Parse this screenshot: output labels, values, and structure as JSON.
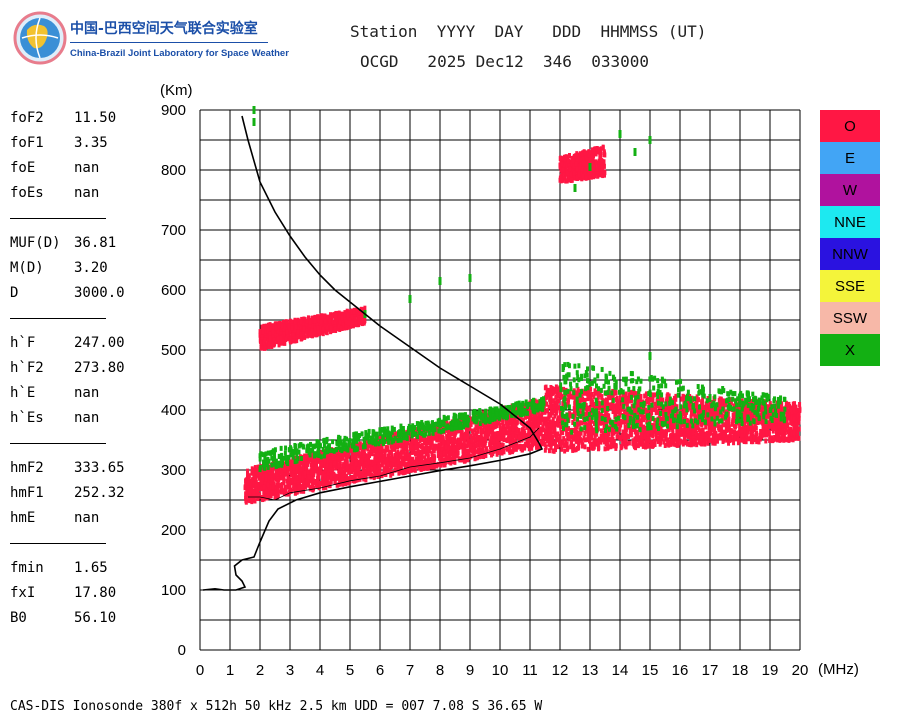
{
  "logo": {
    "cn": "中国-巴西空间天气联合实验室",
    "en": "China-Brazil Joint Laboratory for Space Weather"
  },
  "header": {
    "line1": "Station  YYYY  DAY   DDD  HHMMSS (UT)",
    "line2": "OCGD   2025 Dec12  346  033000"
  },
  "params": [
    [
      [
        "foF2",
        "11.50"
      ],
      [
        "foF1",
        "3.35"
      ],
      [
        "foE",
        "nan"
      ],
      [
        "foEs",
        "nan"
      ]
    ],
    [
      [
        "MUF(D)",
        "36.81"
      ],
      [
        "M(D)",
        "3.20"
      ],
      [
        "D",
        "3000.0"
      ]
    ],
    [
      [
        "h`F",
        "247.00"
      ],
      [
        "h`F2",
        "273.80"
      ],
      [
        "h`E",
        "nan"
      ],
      [
        "h`Es",
        "nan"
      ]
    ],
    [
      [
        "hmF2",
        "333.65"
      ],
      [
        "hmF1",
        "252.32"
      ],
      [
        "hmE",
        "nan"
      ]
    ],
    [
      [
        "fmin",
        "1.65"
      ],
      [
        "fxI",
        "17.80"
      ],
      [
        "B0",
        "56.10"
      ]
    ]
  ],
  "legend": [
    {
      "label": "O",
      "color": "#ff1744"
    },
    {
      "label": "E",
      "color": "#42a5f5"
    },
    {
      "label": "W",
      "color": "#b0129e"
    },
    {
      "label": "NNE",
      "color": "#1de9f0"
    },
    {
      "label": "NNW",
      "color": "#2a12e0"
    },
    {
      "label": "SSE",
      "color": "#f4f43a"
    },
    {
      "label": "SSW",
      "color": "#f7b8a8"
    },
    {
      "label": "X",
      "color": "#13b013"
    }
  ],
  "footer": "CAS-DIS Ionosonde 380f x 512h 50 kHz 2.5 km UDD = 007 7.08 S 36.65 W",
  "chart_data": {
    "type": "scatter",
    "xlabel": "(MHz)",
    "ylabel": "(Km)",
    "xlim": [
      0,
      20
    ],
    "ylim": [
      0,
      900
    ],
    "xticks": [
      0,
      1,
      2,
      3,
      4,
      5,
      6,
      7,
      8,
      9,
      10,
      11,
      12,
      13,
      14,
      15,
      16,
      17,
      18,
      19,
      20
    ],
    "yticks": [
      0,
      100,
      200,
      300,
      400,
      500,
      600,
      700,
      800,
      900
    ],
    "grid": true,
    "legend_position": "right",
    "series": [
      {
        "name": "O",
        "color": "#ff1744",
        "regions": [
          {
            "x": [
              1.5,
              11.5
            ],
            "y_low": [
              245,
              340
            ],
            "y_high": [
              300,
              420
            ]
          },
          {
            "x": [
              11.5,
              20
            ],
            "y_low": [
              330,
              350
            ],
            "y_high": [
              440,
              410
            ]
          },
          {
            "x": [
              2.0,
              5.5
            ],
            "y_low": [
              500,
              545
            ],
            "y_high": [
              540,
              570
            ]
          },
          {
            "x": [
              12.0,
              13.5
            ],
            "y_low": [
              780,
              790
            ],
            "y_high": [
              820,
              840
            ]
          }
        ]
      },
      {
        "name": "X",
        "color": "#13b013",
        "points": [
          [
            1.8,
            880
          ],
          [
            1.8,
            900
          ],
          [
            7.0,
            585
          ],
          [
            8.0,
            615
          ],
          [
            9.0,
            620
          ],
          [
            5.5,
            560
          ],
          [
            15.0,
            850
          ],
          [
            14.0,
            860
          ],
          [
            12.5,
            770
          ],
          [
            13.0,
            805
          ],
          [
            14.5,
            830
          ],
          [
            15.0,
            490
          ],
          [
            12.1,
            470
          ],
          [
            17.0,
            420
          ]
        ],
        "regions": [
          {
            "x": [
              2.0,
              11.5
            ],
            "y_low": [
              300,
              400
            ],
            "y_high": [
              330,
              420
            ]
          },
          {
            "x": [
              12.0,
              19.5
            ],
            "y_low": [
              360,
              380
            ],
            "y_high": [
              480,
              420
            ]
          }
        ]
      }
    ],
    "profile": {
      "name": "electron density profile",
      "color": "#000000",
      "points": [
        [
          1.4,
          890
        ],
        [
          1.6,
          850
        ],
        [
          2.0,
          780
        ],
        [
          2.5,
          730
        ],
        [
          3.0,
          690
        ],
        [
          3.5,
          655
        ],
        [
          4.0,
          625
        ],
        [
          4.5,
          600
        ],
        [
          5.0,
          580
        ],
        [
          5.5,
          560
        ],
        [
          6.0,
          540
        ],
        [
          7.0,
          505
        ],
        [
          8.0,
          470
        ],
        [
          9.0,
          440
        ],
        [
          10.0,
          410
        ],
        [
          10.5,
          390
        ],
        [
          11.0,
          370
        ],
        [
          11.3,
          345
        ],
        [
          11.4,
          335
        ],
        [
          11.0,
          327
        ],
        [
          10.0,
          316
        ],
        [
          9.0,
          307
        ],
        [
          8.0,
          299
        ],
        [
          7.0,
          290
        ],
        [
          6.0,
          281
        ],
        [
          5.0,
          272
        ],
        [
          4.0,
          262
        ],
        [
          3.2,
          250
        ],
        [
          2.6,
          235
        ],
        [
          2.3,
          215
        ],
        [
          2.0,
          180
        ],
        [
          1.8,
          155
        ],
        [
          1.4,
          150
        ],
        [
          1.15,
          140
        ],
        [
          1.2,
          125
        ],
        [
          1.4,
          115
        ],
        [
          1.5,
          105
        ],
        [
          1.2,
          100
        ],
        [
          0.8,
          100
        ],
        [
          0.5,
          102
        ],
        [
          0.1,
          100
        ]
      ]
    },
    "trace_line": {
      "name": "trace",
      "color": "#000000",
      "points": [
        [
          1.6,
          255
        ],
        [
          2.0,
          255
        ],
        [
          2.5,
          250
        ],
        [
          3.0,
          262
        ],
        [
          4.0,
          270
        ],
        [
          5.0,
          282
        ],
        [
          6.0,
          290
        ],
        [
          7.0,
          305
        ],
        [
          8.0,
          312
        ],
        [
          9.0,
          320
        ],
        [
          10.0,
          335
        ],
        [
          10.5,
          345
        ],
        [
          11.0,
          355
        ],
        [
          11.3,
          370
        ]
      ]
    }
  }
}
